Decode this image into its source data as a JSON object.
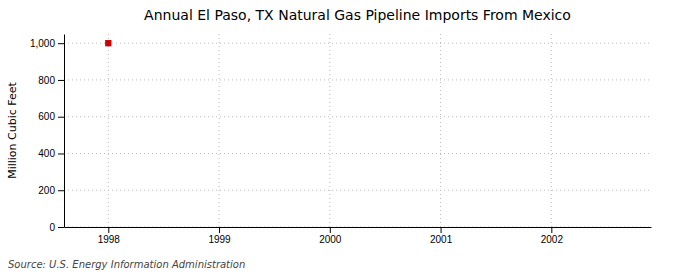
{
  "chart_data": {
    "type": "scatter",
    "title": "Annual El Paso, TX Natural Gas Pipeline Imports From Mexico",
    "ylabel": "Million Cubic Feet",
    "source": "Source: U.S. Energy Information Administration",
    "x": [
      1998
    ],
    "values": [
      1000
    ],
    "color": "#cc0000",
    "marker": "square",
    "xlim": [
      1997.6,
      2002.9
    ],
    "xticks": [
      1998,
      1999,
      2000,
      2001,
      2002
    ],
    "ylim": [
      0,
      1050
    ],
    "yticks": [
      0,
      200,
      400,
      600,
      800,
      {
        "value": 1000,
        "label": "1,000"
      }
    ],
    "grid": true
  }
}
